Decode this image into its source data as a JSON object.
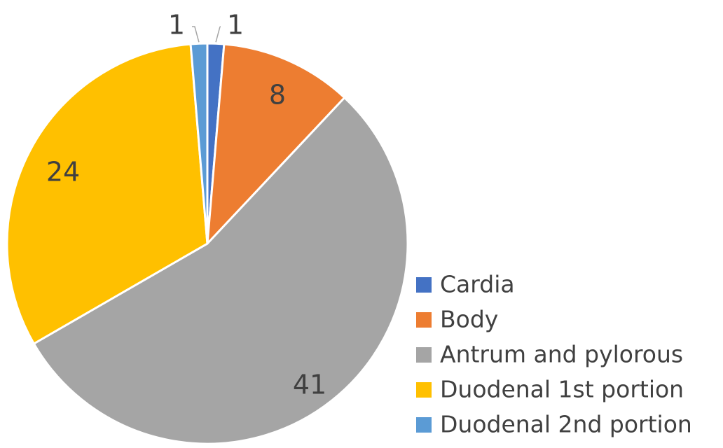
{
  "chart_data": {
    "type": "pie",
    "title": "",
    "slices": [
      {
        "label": "Cardia",
        "value": 1,
        "color": "#4472C4"
      },
      {
        "label": "Body",
        "value": 8,
        "color": "#ED7D31"
      },
      {
        "label": "Antrum and pylorous",
        "value": 41,
        "color": "#A5A5A5"
      },
      {
        "label": "Duodenal 1st portion",
        "value": 24,
        "color": "#FFC000"
      },
      {
        "label": "Duodenal 2nd portion",
        "value": 1,
        "color": "#5B9BD5"
      }
    ],
    "data_labels": [
      "1",
      "8",
      "41",
      "24",
      "1"
    ],
    "legend_position": "bottom-right"
  }
}
